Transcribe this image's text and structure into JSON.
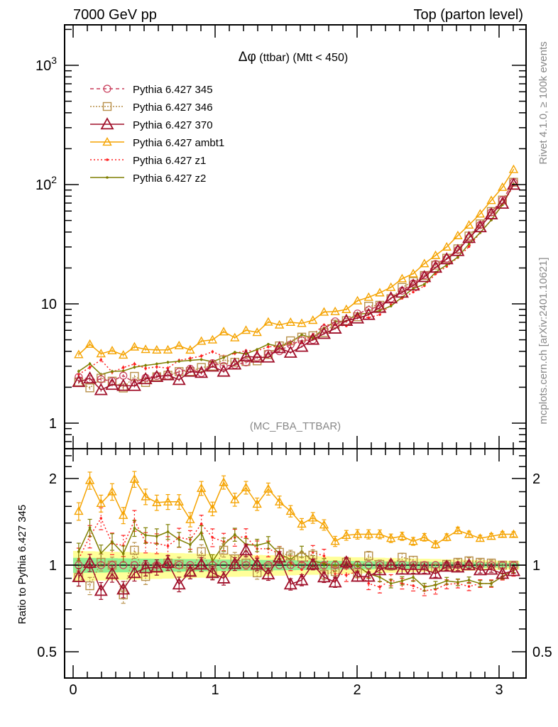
{
  "header": {
    "left": "7000 GeV pp",
    "right": "Top (parton level)"
  },
  "side_texts": {
    "rivet": "Rivet 4.1.0, ≥ 100k events",
    "mcplots": "mcplots.cern.ch [arXiv:2401.10621]"
  },
  "chart_data": {
    "type": "line",
    "title": "Δφ (ttbar) (Mtt < 450)",
    "title_parts": {
      "symbol": "Δφ",
      "rest": " (ttbar) (Mtt < 450)"
    },
    "analysis_label": "(MC_FBA_TTBAR)",
    "xlabel": "",
    "ylabel_ratio": "Ratio to Pythia 6.427 345",
    "x_range": [
      0,
      3.1416
    ],
    "nbins": 40,
    "xlim": [
      -0.06,
      3.19
    ],
    "ylim_main": [
      0.61,
      2180
    ],
    "ylim_ratio": [
      0.405,
      2.54
    ],
    "yscale": "log",
    "x_ticks": [
      "0",
      "1",
      "2",
      "3"
    ],
    "main_y_ticks": [
      {
        "value": 1000,
        "base": "10",
        "exp": "3"
      },
      {
        "value": 100,
        "base": "10",
        "exp": "2"
      },
      {
        "value": 10,
        "base": "10",
        "exp": ""
      },
      {
        "value": 1,
        "base": "1",
        "exp": ""
      }
    ],
    "ratio_y_ticks": [
      {
        "value": 2,
        "label": "2"
      },
      {
        "value": 1,
        "label": "1"
      },
      {
        "value": 0.5,
        "label": "0.5"
      }
    ],
    "legend_position": "top-left",
    "reference_values": [
      2.44,
      2.33,
      2.33,
      2.25,
      2.5,
      2.19,
      2.4,
      2.49,
      2.48,
      2.69,
      2.85,
      2.63,
      3.18,
      3.01,
      3.08,
      3.23,
      3.54,
      3.83,
      4.01,
      4.55,
      4.94,
      4.99,
      6.19,
      7.13,
      7.07,
      8.29,
      8.88,
      9.68,
      11.1,
      12.9,
      14.8,
      17.4,
      21.6,
      24.0,
      28.3,
      35.8,
      45.8,
      58.5,
      74.2,
      104.7
    ],
    "ratio_band": {
      "outer_rel_err": [
        0.12,
        0.035
      ],
      "inner_rel_err": [
        0.06,
        0.018
      ],
      "outer_color": "#ffff99",
      "inner_color": "#90ee90"
    },
    "ratio_point_rel_err": [
      0.07,
      0.02
    ],
    "series": [
      {
        "name": "Pythia 6.427 z1",
        "color": "#ff2020",
        "dash": "2,3",
        "marker": "dot",
        "ratio": [
          1.05,
          1.26,
          1.455,
          1.19,
          1.17,
          1.43,
          1.2,
          1.19,
          1.166,
          1.248,
          1.227,
          1.39,
          1.248,
          1.206,
          1.248,
          1.255,
          1.14,
          1.14,
          1.095,
          1.017,
          0.966,
          1.108,
          1.077,
          0.934,
          0.924,
          0.95,
          0.863,
          0.839,
          0.887,
          0.863,
          0.848,
          0.815,
          0.824,
          0.858,
          0.863,
          0.843,
          0.863,
          0.863,
          0.913,
          0.94
        ]
      },
      {
        "name": "Pythia 6.427 z2",
        "color": "#7f7f00",
        "dash": "",
        "marker": "dot",
        "ratio": [
          1.114,
          1.35,
          1.1,
          1.206,
          1.095,
          1.344,
          1.27,
          1.26,
          1.306,
          1.227,
          1.179,
          1.298,
          1.03,
          1.179,
          1.277,
          1.179,
          1.172,
          1.199,
          1.095,
          1.046,
          1.114,
          1.035,
          1.011,
          0.994,
          1.017,
          0.994,
          0.934,
          0.908,
          0.863,
          0.882,
          0.908,
          0.839,
          0.853,
          0.882,
          0.872,
          0.887,
          0.863,
          0.863,
          0.913,
          0.961
        ]
      },
      {
        "name": "Pythia 6.427 346",
        "color": "#b8904a",
        "dash": "2,2",
        "marker": "square",
        "ratio": [
          0.908,
          0.848,
          1.023,
          1.0,
          0.788,
          1.127,
          0.913,
          0.983,
          1.017,
          1.006,
          0.95,
          1.114,
          0.945,
          1.127,
          1.052,
          1.017,
          0.94,
          0.983,
          1.108,
          1.077,
          1.065,
          1.083,
          0.929,
          0.95,
          1.023,
          0.94,
          1.077,
          1.006,
          0.994,
          1.065,
          1.04,
          0.994,
          0.977,
          1.006,
          1.023,
          1.035,
          1.023,
          1.017,
          1.0,
          1.0
        ]
      },
      {
        "name": "Pythia 6.427 345",
        "color": "#c83c5a",
        "dash": "5,4",
        "marker": "circle",
        "ratio": [
          1,
          1,
          1,
          1,
          1,
          1,
          1,
          1,
          1,
          1,
          1,
          1,
          1,
          1,
          1,
          1,
          1,
          1,
          1,
          1,
          1,
          1,
          1,
          1,
          1,
          1,
          1,
          1,
          1,
          1,
          1,
          1,
          1,
          1,
          1,
          1,
          1,
          1,
          1,
          1
        ]
      },
      {
        "name": "Pythia 6.427 ambt1",
        "color": "#f5a300",
        "dash": "",
        "marker": "triangle-small",
        "ratio": [
          1.54,
          1.97,
          1.64,
          1.8,
          1.49,
          1.99,
          1.73,
          1.65,
          1.66,
          1.66,
          1.44,
          1.85,
          1.57,
          1.94,
          1.69,
          1.86,
          1.63,
          1.84,
          1.66,
          1.54,
          1.39,
          1.46,
          1.38,
          1.21,
          1.27,
          1.28,
          1.28,
          1.28,
          1.24,
          1.26,
          1.21,
          1.25,
          1.18,
          1.25,
          1.32,
          1.28,
          1.24,
          1.26,
          1.28,
          1.28
        ]
      },
      {
        "name": "Pythia 6.427 370",
        "color": "#a0102a",
        "dash": "",
        "marker": "triangle",
        "ratio": [
          0.91,
          1.02,
          0.815,
          0.934,
          0.824,
          0.94,
          0.977,
          0.983,
          1.02,
          0.858,
          0.95,
          1.006,
          0.94,
          0.9,
          1.01,
          1.127,
          1.006,
          0.93,
          1.065,
          0.858,
          0.887,
          1.006,
          0.908,
          0.872,
          1.023,
          0.913,
          0.913,
          0.961,
          1.006,
          0.966,
          0.966,
          0.966,
          0.934,
          0.989,
          0.983,
          1.0,
          0.961,
          0.966,
          0.934,
          0.955
        ]
      }
    ],
    "legend_order": [
      3,
      2,
      5,
      4,
      0,
      1
    ]
  }
}
